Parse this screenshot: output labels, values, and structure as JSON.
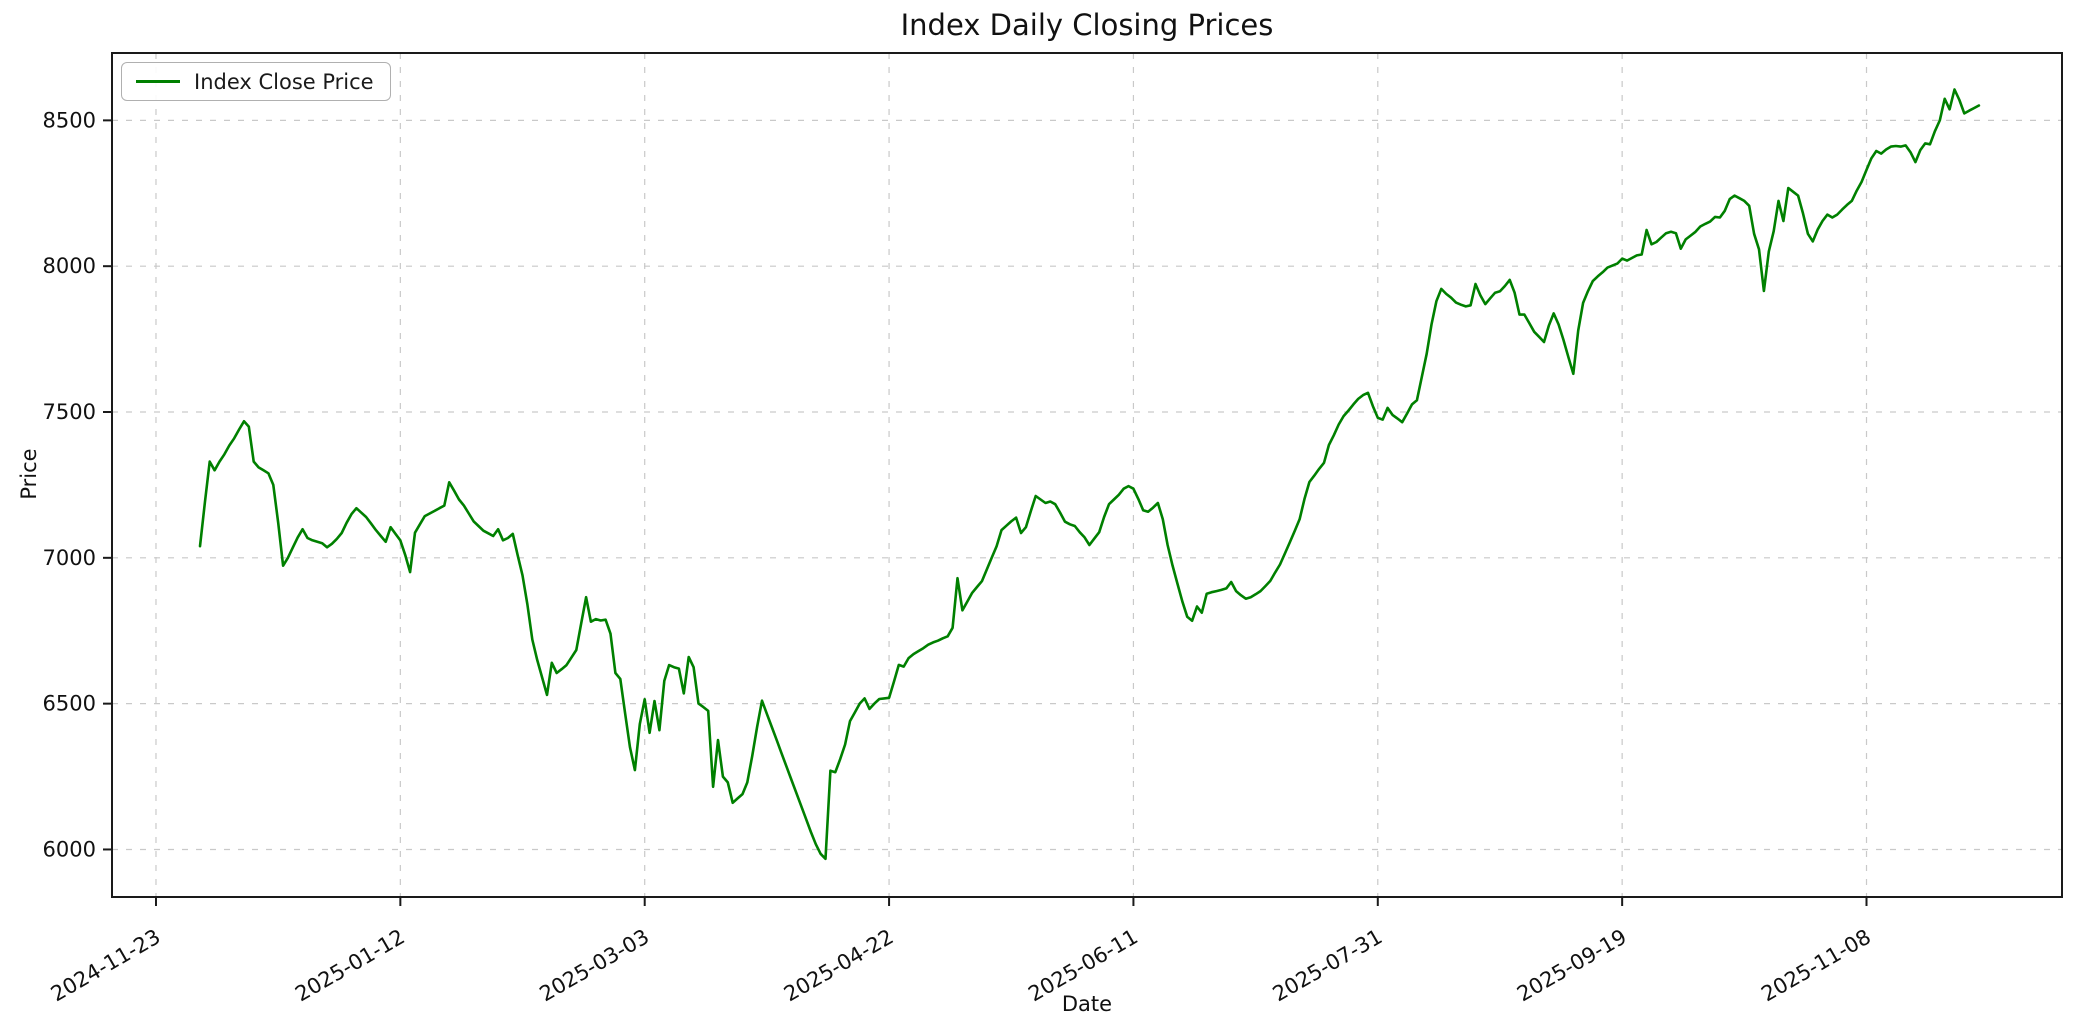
{
  "chart_data": {
    "type": "line",
    "title": "Index Daily Closing Prices",
    "xlabel": "Date",
    "ylabel": "Price",
    "legend": {
      "label": "Index Close Price",
      "position": "upper-left"
    },
    "line_color": "#008000",
    "background_color": "#ffffff",
    "grid": {
      "on": true,
      "style": "dashed",
      "color": "#c9c9c9"
    },
    "start_date": "2024-12-02",
    "end_date": "2025-12-01",
    "frequency": "daily",
    "ylim": [
      5837,
      8731
    ],
    "xlim_day_index": [
      -18,
      381
    ],
    "y_ticks": [
      6000,
      6500,
      7000,
      7500,
      8000,
      8500
    ],
    "x_ticks": [
      {
        "label": "2024-11-23",
        "day_index": -9
      },
      {
        "label": "2025-01-12",
        "day_index": 41
      },
      {
        "label": "2025-03-03",
        "day_index": 91
      },
      {
        "label": "2025-04-22",
        "day_index": 141
      },
      {
        "label": "2025-06-11",
        "day_index": 191
      },
      {
        "label": "2025-07-31",
        "day_index": 241
      },
      {
        "label": "2025-09-19",
        "day_index": 291
      },
      {
        "label": "2025-11-08",
        "day_index": 341
      }
    ],
    "values": [
      7040,
      7190,
      7330,
      7300,
      7330,
      7355,
      7385,
      7410,
      7440,
      7468,
      7450,
      7330,
      7310,
      7300,
      7290,
      7250,
      7120,
      6973,
      7000,
      7035,
      7070,
      7098,
      7068,
      7060,
      7055,
      7050,
      7036,
      7048,
      7065,
      7085,
      7120,
      7150,
      7170,
      7155,
      7140,
      7118,
      7095,
      7075,
      7055,
      7105,
      7082,
      7060,
      7010,
      6951,
      7086,
      7115,
      7143,
      7152,
      7161,
      7170,
      7179,
      7259,
      7230,
      7200,
      7179,
      7152,
      7125,
      7109,
      7093,
      7084,
      7075,
      7098,
      7060,
      7068,
      7082,
      7010,
      6940,
      6840,
      6720,
      6650,
      6590,
      6530,
      6640,
      6605,
      6618,
      6632,
      6658,
      6684,
      6775,
      6865,
      6781,
      6790,
      6785,
      6788,
      6740,
      6605,
      6585,
      6465,
      6350,
      6272,
      6430,
      6515,
      6400,
      6509,
      6409,
      6578,
      6632,
      6625,
      6620,
      6535,
      6660,
      6625,
      6500,
      6488,
      6475,
      6215,
      6375,
      6250,
      6230,
      6160,
      6175,
      6190,
      6230,
      6320,
      6420,
      6510,
      6465,
      6420,
      6375,
      6330,
      6285,
      6240,
      6195,
      6150,
      6105,
      6060,
      6018,
      5985,
      5968,
      6270,
      6265,
      6310,
      6360,
      6440,
      6470,
      6500,
      6518,
      6482,
      6500,
      6516,
      6518,
      6520,
      6576,
      6633,
      6627,
      6656,
      6670,
      6680,
      6690,
      6702,
      6710,
      6716,
      6724,
      6731,
      6760,
      6930,
      6820,
      6850,
      6880,
      6900,
      6920,
      6960,
      7000,
      7040,
      7095,
      7110,
      7125,
      7138,
      7085,
      7105,
      7160,
      7212,
      7200,
      7188,
      7193,
      7184,
      7155,
      7124,
      7115,
      7109,
      7088,
      7070,
      7044,
      7066,
      7088,
      7140,
      7184,
      7200,
      7216,
      7237,
      7246,
      7237,
      7202,
      7163,
      7158,
      7172,
      7188,
      7132,
      7044,
      6974,
      6912,
      6851,
      6798,
      6784,
      6833,
      6812,
      6877,
      6882,
      6886,
      6890,
      6895,
      6917,
      6886,
      6872,
      6860,
      6865,
      6875,
      6886,
      6903,
      6921,
      6950,
      6977,
      7015,
      7053,
      7092,
      7132,
      7202,
      7260,
      7282,
      7305,
      7326,
      7387,
      7420,
      7457,
      7486,
      7505,
      7526,
      7545,
      7558,
      7566,
      7520,
      7480,
      7474,
      7514,
      7490,
      7478,
      7465,
      7495,
      7526,
      7540,
      7620,
      7700,
      7800,
      7880,
      7922,
      7905,
      7892,
      7875,
      7868,
      7862,
      7866,
      7939,
      7900,
      7870,
      7890,
      7909,
      7914,
      7932,
      7953,
      7909,
      7834,
      7834,
      7805,
      7775,
      7758,
      7740,
      7796,
      7838,
      7800,
      7747,
      7688,
      7631,
      7779,
      7874,
      7914,
      7949,
      7965,
      7979,
      7995,
      8002,
      8009,
      8026,
      8019,
      8028,
      8037,
      8040,
      8124,
      8075,
      8083,
      8098,
      8113,
      8118,
      8113,
      8060,
      8092,
      8105,
      8118,
      8136,
      8145,
      8153,
      8169,
      8167,
      8190,
      8230,
      8242,
      8233,
      8224,
      8207,
      8111,
      8058,
      7915,
      8050,
      8120,
      8224,
      8155,
      8268,
      8255,
      8242,
      8181,
      8111,
      8085,
      8125,
      8155,
      8177,
      8167,
      8177,
      8194,
      8210,
      8224,
      8259,
      8289,
      8330,
      8370,
      8395,
      8386,
      8400,
      8410,
      8412,
      8410,
      8414,
      8391,
      8357,
      8398,
      8421,
      8418,
      8463,
      8500,
      8574,
      8538,
      8606,
      8570,
      8524,
      8533,
      8542,
      8551
    ]
  }
}
